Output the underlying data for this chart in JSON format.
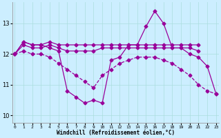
{
  "xlabel": "Windchill (Refroidissement éolien,°C)",
  "hours": [
    0,
    1,
    2,
    3,
    4,
    5,
    6,
    7,
    8,
    9,
    10,
    11,
    12,
    13,
    14,
    15,
    16,
    17,
    18,
    19,
    20,
    21,
    22,
    23
  ],
  "series1": [
    12.0,
    12.4,
    12.3,
    12.3,
    12.2,
    12.1,
    10.8,
    10.6,
    10.4,
    10.5,
    10.4,
    11.8,
    11.9,
    12.3,
    12.3,
    12.9,
    13.4,
    13.0,
    12.2,
    12.2,
    12.0,
    11.9,
    11.6,
    10.7
  ],
  "series2": [
    12.0,
    12.4,
    12.3,
    12.3,
    12.4,
    12.3,
    12.3,
    12.3,
    12.3,
    12.3,
    12.3,
    12.3,
    12.3,
    12.3,
    12.3,
    12.3,
    12.3,
    12.3,
    12.3,
    12.3,
    12.3,
    12.3,
    null,
    null
  ],
  "series3": [
    12.0,
    12.3,
    12.2,
    12.2,
    12.3,
    12.2,
    12.1,
    12.1,
    12.1,
    12.1,
    12.2,
    12.2,
    12.2,
    12.2,
    12.2,
    12.2,
    12.2,
    12.2,
    12.2,
    12.2,
    12.2,
    12.1,
    null,
    null
  ],
  "series4_dashed": [
    12.0,
    12.1,
    12.0,
    12.0,
    11.9,
    11.7,
    11.5,
    11.3,
    11.1,
    10.9,
    11.3,
    11.5,
    11.7,
    11.8,
    11.9,
    11.9,
    11.9,
    11.8,
    11.7,
    11.5,
    11.3,
    11.0,
    10.8,
    10.7
  ],
  "line_color": "#990099",
  "bg_color": "#cceeff",
  "grid_color": "#aadddd",
  "ylim": [
    9.75,
    13.7
  ],
  "yticks": [
    10,
    11,
    12,
    13
  ]
}
